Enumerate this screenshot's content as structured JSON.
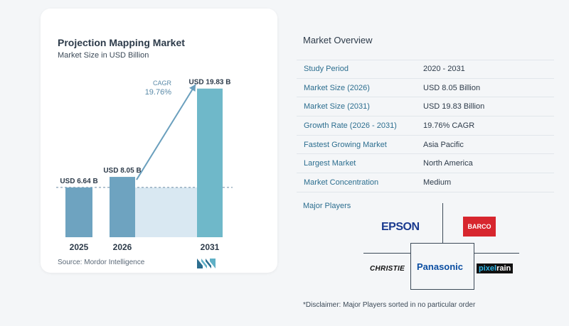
{
  "chart": {
    "title": "Projection Mapping Market",
    "subtitle": "Market Size in USD Billion",
    "source": "Source:  Mordor Intelligence",
    "cagr_label": "CAGR",
    "cagr_value": "19.76%"
  },
  "chart_data": {
    "type": "bar",
    "title": "Projection Mapping Market",
    "subtitle": "Market Size in USD Billion",
    "categories": [
      "2025",
      "2026",
      "2031"
    ],
    "values": [
      6.64,
      8.05,
      19.83
    ],
    "data_labels": [
      "USD 6.64 B",
      "USD 8.05 B",
      "USD 19.83 B"
    ],
    "annotation": "CAGR 19.76%",
    "xlabel": "",
    "ylabel": "",
    "ylim": [
      0,
      20
    ],
    "grid": false,
    "colors": {
      "bar": "#6ea3c0",
      "bar_top": "#5b93b3",
      "last_bar": "#6fb8c9",
      "arrow": "#6a9fbd",
      "band": "#d9e8f2"
    }
  },
  "overview": {
    "title": "Market Overview",
    "rows": [
      {
        "label": "Study Period",
        "value": "2020 - 2031"
      },
      {
        "label": "Market Size (2026)",
        "value": "USD 8.05 Billion"
      },
      {
        "label": "Market Size (2031)",
        "value": "USD 19.83 Billion"
      },
      {
        "label": "Growth Rate (2026 - 2031)",
        "value": "19.76% CAGR"
      },
      {
        "label": "Fastest Growing Market",
        "value": "Asia Pacific"
      },
      {
        "label": "Largest Market",
        "value": "North America"
      },
      {
        "label": "Market Concentration",
        "value": "Medium"
      }
    ]
  },
  "players": {
    "title": "Major Players",
    "epson": "EPSON",
    "barco": "BARCO",
    "christie": "CHRISTIE",
    "panasonic": "Panasonic",
    "pixel": "pixel",
    "rain": "rain",
    "disclaimer": "*Disclaimer: Major Players sorted in no particular order"
  },
  "brand": {
    "logo": "Mordor Intelligence logo"
  }
}
